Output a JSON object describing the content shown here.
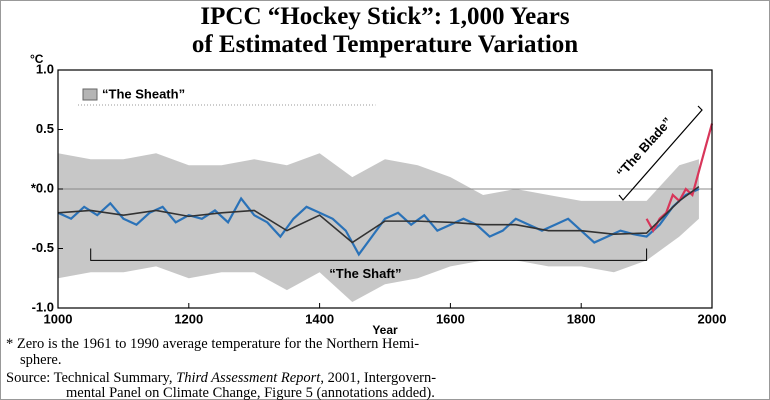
{
  "chart_data": {
    "type": "line",
    "title": [
      "IPCC “Hockey Stick”: 1,000 Years",
      "of Estimated Temperature Variation"
    ],
    "y_unit": "°C",
    "x_label": "Year",
    "xlim": [
      1000,
      2000
    ],
    "xticks": [
      1000,
      1200,
      1400,
      1600,
      1800,
      2000
    ],
    "ylim": [
      -1.0,
      1.0
    ],
    "yticks": [
      {
        "value": 1.0,
        "label": "1.0"
      },
      0.5,
      {
        "value": 0,
        "label": "*0.0"
      },
      -0.5,
      {
        "value": -1.0,
        "label": "-1.0"
      }
    ],
    "zero_line": true,
    "legend": "top-left",
    "sheath": {
      "name": "“The Sheath”",
      "color": "#b4b4b4",
      "x": [
        1000,
        1050,
        1100,
        1150,
        1200,
        1250,
        1300,
        1350,
        1400,
        1450,
        1500,
        1550,
        1600,
        1650,
        1700,
        1750,
        1800,
        1850,
        1900,
        1950,
        1980
      ],
      "upper": [
        0.3,
        0.25,
        0.25,
        0.3,
        0.2,
        0.2,
        0.25,
        0.2,
        0.3,
        0.1,
        0.25,
        0.2,
        0.1,
        -0.05,
        0.0,
        -0.05,
        -0.1,
        -0.1,
        -0.1,
        0.2,
        0.25
      ],
      "lower": [
        -0.75,
        -0.7,
        -0.7,
        -0.65,
        -0.75,
        -0.7,
        -0.7,
        -0.85,
        -0.7,
        -0.95,
        -0.8,
        -0.75,
        -0.65,
        -0.6,
        -0.6,
        -0.65,
        -0.65,
        -0.7,
        -0.6,
        -0.4,
        -0.25
      ]
    },
    "series": [
      {
        "color": "#2a72b8",
        "x": [
          1000,
          1020,
          1040,
          1060,
          1080,
          1100,
          1120,
          1140,
          1160,
          1180,
          1200,
          1220,
          1240,
          1260,
          1280,
          1300,
          1320,
          1340,
          1360,
          1380,
          1400,
          1420,
          1440,
          1460,
          1480,
          1500,
          1520,
          1540,
          1560,
          1580,
          1600,
          1620,
          1640,
          1660,
          1680,
          1700,
          1720,
          1740,
          1760,
          1780,
          1800,
          1820,
          1840,
          1860,
          1880,
          1900,
          1920,
          1940,
          1960,
          1980
        ],
        "values": [
          -0.2,
          -0.25,
          -0.15,
          -0.22,
          -0.12,
          -0.25,
          -0.3,
          -0.2,
          -0.15,
          -0.28,
          -0.22,
          -0.25,
          -0.18,
          -0.28,
          -0.08,
          -0.22,
          -0.28,
          -0.4,
          -0.25,
          -0.15,
          -0.2,
          -0.25,
          -0.35,
          -0.55,
          -0.4,
          -0.25,
          -0.2,
          -0.3,
          -0.22,
          -0.35,
          -0.3,
          -0.25,
          -0.3,
          -0.4,
          -0.35,
          -0.25,
          -0.3,
          -0.35,
          -0.3,
          -0.25,
          -0.35,
          -0.45,
          -0.4,
          -0.35,
          -0.38,
          -0.4,
          -0.3,
          -0.15,
          -0.05,
          0.0
        ]
      },
      {
        "color": "#d8365a",
        "x": [
          1900,
          1910,
          1920,
          1930,
          1940,
          1950,
          1960,
          1970,
          1980,
          1990,
          2000
        ],
        "values": [
          -0.25,
          -0.35,
          -0.25,
          -0.2,
          -0.05,
          -0.1,
          0.0,
          -0.05,
          0.15,
          0.35,
          0.55
        ]
      },
      {
        "color": "#333333",
        "x": [
          1000,
          1050,
          1100,
          1150,
          1200,
          1250,
          1300,
          1350,
          1400,
          1450,
          1500,
          1550,
          1600,
          1650,
          1700,
          1750,
          1800,
          1850,
          1900,
          1950,
          1980
        ],
        "values": [
          -0.2,
          -0.18,
          -0.22,
          -0.18,
          -0.23,
          -0.2,
          -0.18,
          -0.35,
          -0.22,
          -0.45,
          -0.27,
          -0.27,
          -0.28,
          -0.3,
          -0.3,
          -0.35,
          -0.35,
          -0.38,
          -0.37,
          -0.1,
          0.02
        ]
      }
    ],
    "annotations": {
      "shaft": "“The Shaft”",
      "blade": "“The Blade”"
    },
    "footnote": [
      "* Zero is the 1961 to 1990 average temperature for the Northern Hemi-",
      "sphere."
    ],
    "source": [
      [
        "Source: Technical Summary, ",
        "Third Assessment Report",
        ", 2001, Intergovern-"
      ],
      "mental Panel on Climate Change, Figure 5  (annotations added)."
    ]
  }
}
